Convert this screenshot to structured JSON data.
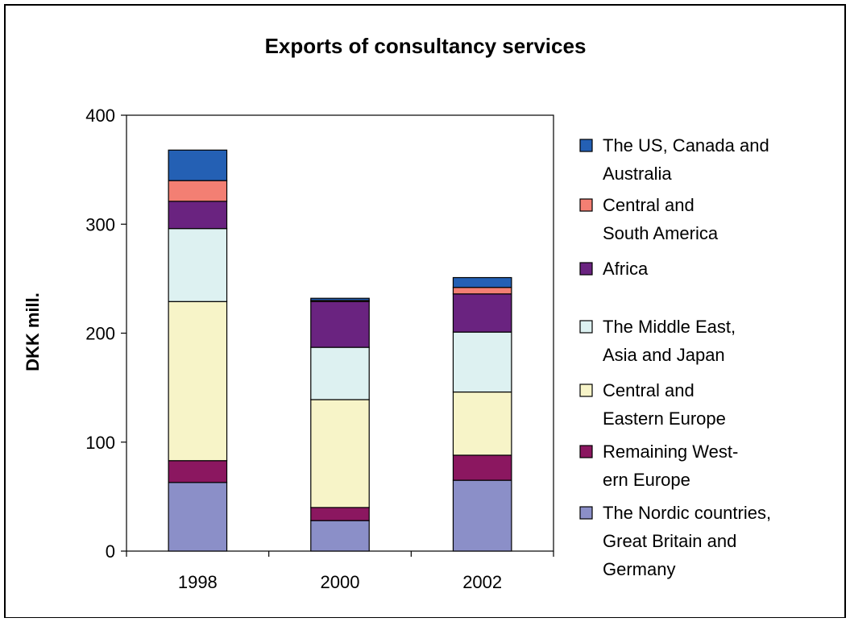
{
  "chart_data": {
    "type": "bar",
    "stacked": true,
    "title": "Exports of consultancy services",
    "xlabel": "",
    "ylabel": "DKK mill.",
    "ylim": [
      0,
      400
    ],
    "yticks": [
      0,
      100,
      200,
      300,
      400
    ],
    "categories": [
      "1998",
      "2000",
      "2002"
    ],
    "grid": false,
    "legend_position": "right",
    "series": [
      {
        "name": "The Nordic countries, Great Britain and Germany",
        "legend_lines": [
          "The Nordic countries,",
          "Great Britain and",
          "Germany"
        ],
        "color": "#8B8FC8",
        "values": [
          63,
          28,
          65
        ]
      },
      {
        "name": "Remaining Western Europe",
        "legend_lines": [
          "Remaining West-",
          "ern Europe"
        ],
        "color": "#8B1760",
        "values": [
          20,
          12,
          23
        ]
      },
      {
        "name": "Central and Eastern Europe",
        "legend_lines": [
          "Central and",
          "Eastern Europe"
        ],
        "color": "#F7F4C8",
        "values": [
          146,
          99,
          58
        ]
      },
      {
        "name": "The Middle East, Asia and Japan",
        "legend_lines": [
          "The Middle East,",
          "Asia and Japan"
        ],
        "color": "#DDF1F1",
        "values": [
          67,
          48,
          55
        ]
      },
      {
        "name": "Africa",
        "legend_lines": [
          "Africa"
        ],
        "color": "#6A2380",
        "values": [
          25,
          42,
          35
        ]
      },
      {
        "name": "Central and South America",
        "legend_lines": [
          "Central and",
          "South America"
        ],
        "color": "#F37F73",
        "values": [
          19,
          1,
          6
        ]
      },
      {
        "name": "The US, Canada and Australia",
        "legend_lines": [
          "The US, Canada and",
          "Australia"
        ],
        "color": "#2460B4",
        "values": [
          28,
          2,
          9
        ]
      }
    ]
  }
}
